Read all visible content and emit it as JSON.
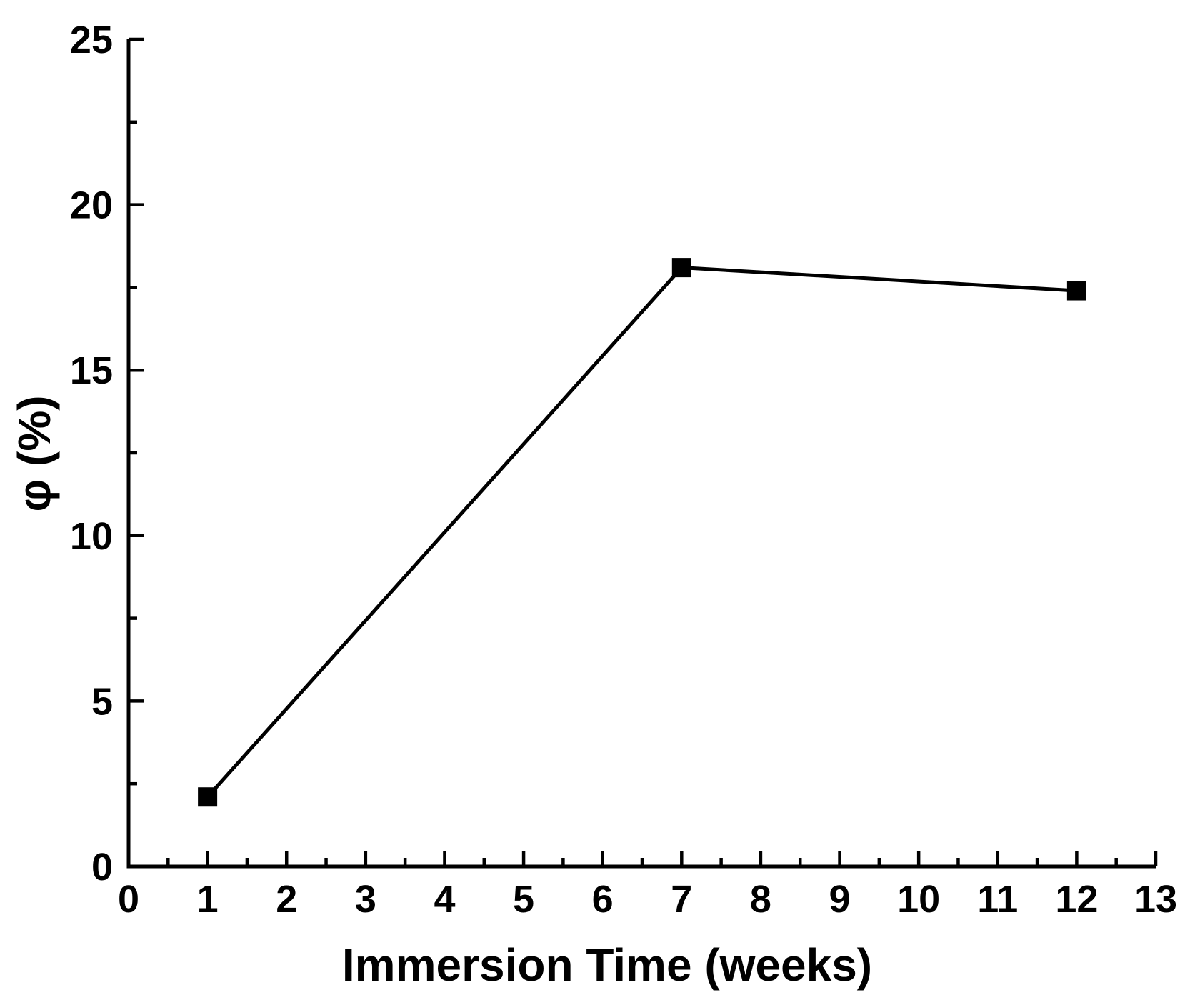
{
  "figure": {
    "background": "#ffffff",
    "axis_color": "#000000"
  },
  "chart_data": {
    "type": "line",
    "title": "",
    "xlabel": "Immersion Time (weeks)",
    "ylabel": "φ (%)",
    "series": [
      {
        "name": "series-1",
        "x": [
          1,
          7,
          12
        ],
        "y": [
          2.1,
          18.1,
          17.4
        ],
        "marker": "filled-square",
        "marker_size": 27,
        "color": "#000000"
      }
    ],
    "xlim": [
      0,
      13
    ],
    "ylim": [
      0,
      25
    ],
    "x_major_ticks": [
      0,
      1,
      2,
      3,
      4,
      5,
      6,
      7,
      8,
      9,
      10,
      11,
      12,
      13
    ],
    "y_major_ticks": [
      0,
      5,
      10,
      15,
      20,
      25
    ],
    "x_minor_tick_step": 0.5,
    "y_minor_tick_step": 2.5,
    "tick_direction": "in",
    "grid": false,
    "legend_position": "none"
  }
}
